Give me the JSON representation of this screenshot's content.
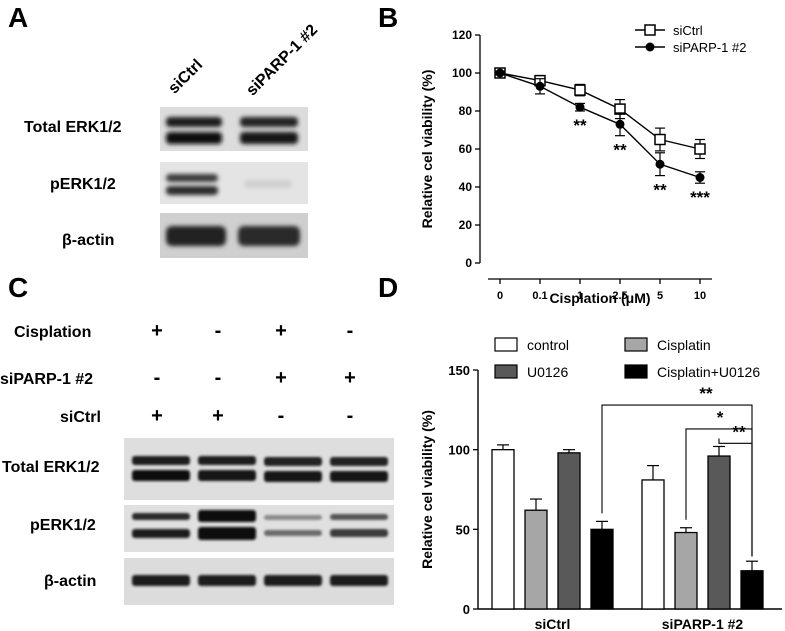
{
  "panels": {
    "a": "A",
    "b": "B",
    "c": "C",
    "d": "D"
  },
  "panel_a": {
    "lanes": [
      "siCtrl",
      "siPARP-1 #2"
    ],
    "rows": [
      "Total ERK1/2",
      "pERK1/2",
      "β-actin"
    ]
  },
  "panel_c": {
    "conditions": [
      {
        "label": "Cisplation",
        "signs": [
          "+",
          "-",
          "+",
          "-"
        ]
      },
      {
        "label": "siPARP-1 #2",
        "signs": [
          "-",
          "-",
          "+",
          "+"
        ]
      },
      {
        "label": "siCtrl",
        "signs": [
          "+",
          "+",
          "-",
          "-"
        ]
      }
    ],
    "rows": [
      "Total ERK1/2",
      "pERK1/2",
      "β-actin"
    ]
  },
  "chart_data": [
    {
      "id": "B",
      "type": "line",
      "xlabel": "Cisplation (μM)",
      "ylabel": "Relative cel viability (%)",
      "categories": [
        "0",
        "0.1",
        "1",
        "2.5",
        "5",
        "10"
      ],
      "ylim": [
        0,
        120
      ],
      "yticks": [
        "0",
        "20",
        "40",
        "60",
        "80",
        "100",
        "120"
      ],
      "legend_position": "top-right",
      "series": [
        {
          "name": "siCtrl",
          "marker": "open-square",
          "values": [
            100,
            96,
            91,
            81,
            65,
            60
          ],
          "errors": [
            1,
            2,
            3,
            5,
            6,
            5
          ]
        },
        {
          "name": "siPARP-1 #2",
          "marker": "filled-circle",
          "values": [
            100,
            93,
            82,
            73,
            52,
            45
          ],
          "errors": [
            1,
            4,
            2,
            6,
            6,
            3
          ]
        }
      ],
      "annotations": [
        {
          "category": "1",
          "text": "**"
        },
        {
          "category": "2.5",
          "text": "**"
        },
        {
          "category": "5",
          "text": "**"
        },
        {
          "category": "10",
          "text": "***"
        }
      ]
    },
    {
      "id": "D",
      "type": "bar",
      "ylabel": "Relative cel viability (%)",
      "ylim": [
        0,
        150
      ],
      "yticks": [
        "0",
        "50",
        "100",
        "150"
      ],
      "categories": [
        "siCtrl",
        "siPARP-1 #2"
      ],
      "legend_position": "top",
      "series": [
        {
          "name": "control",
          "color": "#ffffff",
          "values": [
            100,
            81
          ],
          "errors": [
            3,
            9
          ]
        },
        {
          "name": "Cisplatin",
          "color": "#a6a6a6",
          "values": [
            62,
            48
          ],
          "errors": [
            7,
            3
          ]
        },
        {
          "name": "U0126",
          "color": "#595959",
          "values": [
            98,
            96
          ],
          "errors": [
            2,
            6
          ]
        },
        {
          "name": "Cisplatin+U0126",
          "color": "#000000",
          "values": [
            50,
            24
          ],
          "errors": [
            5,
            6
          ]
        }
      ],
      "significance": [
        {
          "text": "**",
          "from": "siCtrl Cisplatin+U0126",
          "to": "siPARP-1 #2 Cisplatin+U0126"
        },
        {
          "text": "*",
          "from": "siPARP-1 #2 Cisplatin",
          "to": "siPARP-1 #2 Cisplatin+U0126"
        },
        {
          "text": "**",
          "from": "siPARP-1 #2 U0126",
          "to": "siPARP-1 #2 Cisplatin+U0126"
        }
      ]
    }
  ]
}
